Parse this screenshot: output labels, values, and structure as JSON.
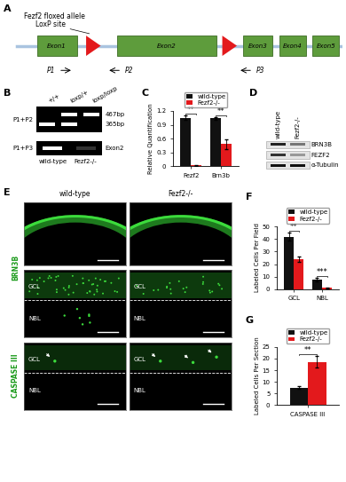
{
  "panels": {
    "A": {
      "label": "A",
      "title": "Fezf2 floxed allele",
      "loxp_label": "LoxP site",
      "exons": [
        "Exon1",
        "Exon2",
        "Exon3",
        "Exon4",
        "Exon5"
      ],
      "primers": [
        "P1",
        "P2",
        "P3"
      ]
    },
    "B": {
      "label": "B",
      "genotypes": [
        "+/+",
        "loxp/+",
        "loxp/loxp"
      ],
      "rows": [
        "P1+P2",
        "P1+P3"
      ],
      "bands": [
        "467bp",
        "365bp",
        "Exon2"
      ],
      "lanes_bottom": [
        "wild-type",
        "Fezf2-/-"
      ]
    },
    "D": {
      "label": "D",
      "lanes": [
        "wild-type",
        "Fezf2-/-"
      ],
      "rows": [
        "BRN3B",
        "FEZF2",
        "α-Tubulin"
      ]
    },
    "E": {
      "label": "E",
      "columns": [
        "wild-type",
        "Fezf2-/-"
      ],
      "stains": [
        "BRN3B",
        "CASPASE III"
      ],
      "layers": [
        "GCL",
        "NBL"
      ]
    }
  },
  "chart_data": [
    {
      "panel_label": "C",
      "type": "bar",
      "categories": [
        "Fezf2",
        "Brn3b"
      ],
      "y_label": "Relative Quantification",
      "ylim": [
        0,
        1.2
      ],
      "yticks": [
        0,
        0.3,
        0.6,
        0.9,
        1.2
      ],
      "legend": "top",
      "series": [
        {
          "name": "wild-type",
          "color": "#111111",
          "values": [
            1.05,
            1.04
          ],
          "errors": [
            0.05,
            0.03
          ]
        },
        {
          "name": "Fezf2-/-",
          "color": "#e3191c",
          "values": [
            0.02,
            0.48
          ],
          "errors": [
            0.01,
            0.1
          ]
        }
      ],
      "annotations": [
        {
          "category": "Fezf2",
          "label": "**"
        },
        {
          "category": "Brn3b",
          "label": "**"
        }
      ]
    },
    {
      "panel_label": "F",
      "type": "bar",
      "categories": [
        "GCL",
        "NBL"
      ],
      "y_label": "Labeled Cells Per Field",
      "ylim": [
        0,
        50
      ],
      "yticks": [
        0,
        10,
        20,
        30,
        40,
        50
      ],
      "legend": "top",
      "series": [
        {
          "name": "wild-type",
          "color": "#111111",
          "values": [
            42,
            7.5
          ],
          "errors": [
            3,
            1.5
          ]
        },
        {
          "name": "Fezf2-/-",
          "color": "#e3191c",
          "values": [
            24,
            1
          ],
          "errors": [
            2,
            0.5
          ]
        }
      ],
      "annotations": [
        {
          "category": "GCL",
          "label": "**"
        },
        {
          "category": "NBL",
          "label": "***"
        }
      ]
    },
    {
      "panel_label": "G",
      "type": "bar",
      "categories": [
        "CASPASE III"
      ],
      "y_label": "Labeled Cells Per Section",
      "ylim": [
        0,
        25
      ],
      "yticks": [
        0,
        5,
        10,
        15,
        20,
        25
      ],
      "legend": "top",
      "series": [
        {
          "name": "wild-type",
          "color": "#111111",
          "values": [
            7.5
          ],
          "errors": [
            0.7
          ]
        },
        {
          "name": "Fezf2-/-",
          "color": "#e3191c",
          "values": [
            18.5
          ],
          "errors": [
            2.5
          ]
        }
      ],
      "annotations": [
        {
          "category": "CASPASE III",
          "label": "**"
        }
      ]
    }
  ]
}
